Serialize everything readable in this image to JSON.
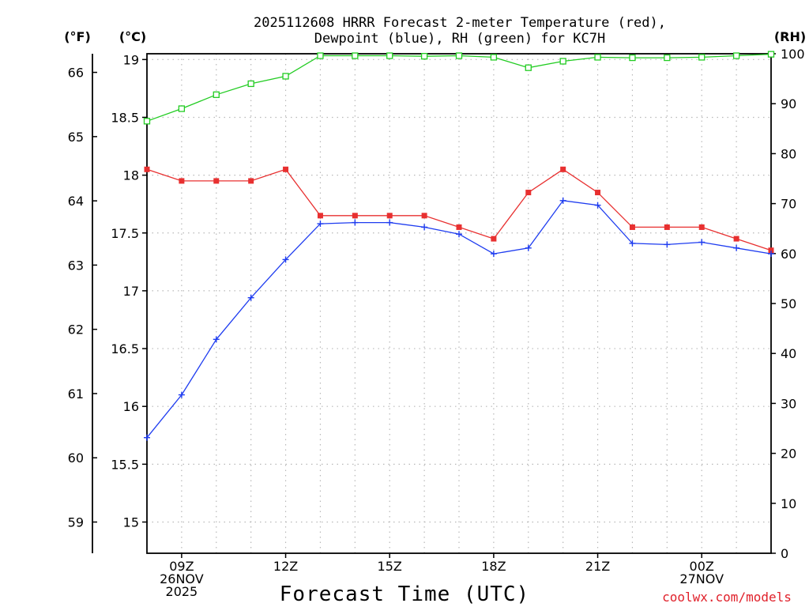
{
  "chart_data": {
    "type": "line",
    "title_line1": "2025112608 HRRR Forecast 2-meter Temperature (red),",
    "title_line2": "Dewpoint (blue), RH (green) for KC7H",
    "xlabel": "Forecast Time (UTC)",
    "credit": "coolwx.com/models",
    "units": {
      "fahrenheit": "(°F)",
      "celsius": "(°C)",
      "rh": "(RH)"
    },
    "x_hours": [
      8,
      9,
      10,
      11,
      12,
      13,
      14,
      15,
      16,
      17,
      18,
      19,
      20,
      21,
      22,
      23,
      24,
      25,
      26
    ],
    "x_ticks": [
      {
        "hour": 9,
        "lines": [
          "09Z",
          "26NOV",
          "2025"
        ]
      },
      {
        "hour": 12,
        "lines": [
          "12Z"
        ]
      },
      {
        "hour": 15,
        "lines": [
          "15Z"
        ]
      },
      {
        "hour": 18,
        "lines": [
          "18Z"
        ]
      },
      {
        "hour": 21,
        "lines": [
          "21Z"
        ]
      },
      {
        "hour": 24,
        "lines": [
          "00Z",
          "27NOV"
        ]
      }
    ],
    "celsius_axis": {
      "min": 14.73,
      "max": 19.05,
      "ticks": [
        "15",
        "15.5",
        "16",
        "16.5",
        "17",
        "17.5",
        "18",
        "18.5",
        "19"
      ]
    },
    "fahrenheit_axis": {
      "ticks": [
        "59",
        "60",
        "61",
        "62",
        "63",
        "64",
        "65",
        "66"
      ]
    },
    "rh_axis": {
      "min": 0,
      "max": 100,
      "ticks": [
        "0",
        "10",
        "20",
        "30",
        "40",
        "50",
        "60",
        "70",
        "80",
        "90",
        "100"
      ]
    },
    "series": [
      {
        "name": "Temperature",
        "unit": "C",
        "color": "#e83030",
        "marker": "filled-square",
        "values": [
          18.05,
          17.95,
          17.95,
          17.95,
          18.05,
          17.65,
          17.65,
          17.65,
          17.65,
          17.55,
          17.45,
          17.85,
          18.05,
          17.85,
          17.55,
          17.55,
          17.55,
          17.45,
          17.35
        ]
      },
      {
        "name": "Dewpoint",
        "unit": "C",
        "color": "#1e3cf0",
        "marker": "plus",
        "values": [
          15.73,
          16.1,
          16.58,
          16.94,
          17.27,
          17.58,
          17.59,
          17.59,
          17.55,
          17.49,
          17.32,
          17.37,
          17.78,
          17.74,
          17.41,
          17.4,
          17.42,
          17.37,
          17.32
        ]
      },
      {
        "name": "RH",
        "unit": "%",
        "color": "#22cc22",
        "marker": "open-square",
        "values": [
          86.5,
          89,
          91.8,
          94,
          95.5,
          99.6,
          99.6,
          99.6,
          99.5,
          99.6,
          99.3,
          97.2,
          98.5,
          99.3,
          99.2,
          99.2,
          99.3,
          99.6,
          99.9
        ]
      }
    ]
  }
}
